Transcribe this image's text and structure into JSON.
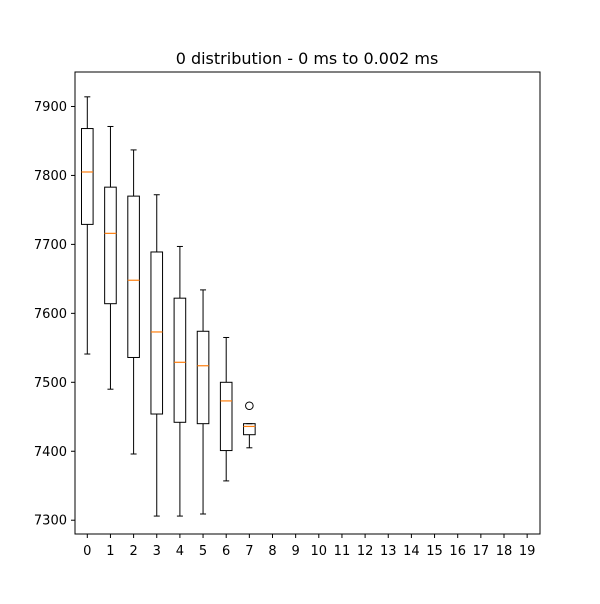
{
  "chart_data": {
    "type": "box",
    "title": "0 distribution - 0 ms to 0.002 ms",
    "xlabel": "",
    "ylabel": "",
    "ylim": [
      7280,
      7950
    ],
    "yticks": [
      7300,
      7400,
      7500,
      7600,
      7700,
      7800,
      7900
    ],
    "categories": [
      "0",
      "1",
      "2",
      "3",
      "4",
      "5",
      "6",
      "7",
      "8",
      "9",
      "10",
      "11",
      "12",
      "13",
      "14",
      "15",
      "16",
      "17",
      "18",
      "19"
    ],
    "grid": false,
    "colors": {
      "box": "#000000",
      "median": "#ff7f0e",
      "background": "#ffffff"
    },
    "boxes": [
      {
        "x": "0",
        "whislo": 7541,
        "q1": 7729,
        "med": 7805,
        "q3": 7868,
        "whishi": 7914,
        "fliers": []
      },
      {
        "x": "1",
        "whislo": 7490,
        "q1": 7614,
        "med": 7716,
        "q3": 7783,
        "whishi": 7871,
        "fliers": []
      },
      {
        "x": "2",
        "whislo": 7396,
        "q1": 7536,
        "med": 7648,
        "q3": 7770,
        "whishi": 7837,
        "fliers": []
      },
      {
        "x": "3",
        "whislo": 7306,
        "q1": 7454,
        "med": 7573,
        "q3": 7689,
        "whishi": 7772,
        "fliers": []
      },
      {
        "x": "4",
        "whislo": 7306,
        "q1": 7442,
        "med": 7529,
        "q3": 7622,
        "whishi": 7697,
        "fliers": []
      },
      {
        "x": "5",
        "whislo": 7309,
        "q1": 7440,
        "med": 7524,
        "q3": 7574,
        "whishi": 7634,
        "fliers": []
      },
      {
        "x": "6",
        "whislo": 7357,
        "q1": 7401,
        "med": 7473,
        "q3": 7500,
        "whishi": 7565,
        "fliers": []
      },
      {
        "x": "7",
        "whislo": 7405,
        "q1": 7424,
        "med": 7436,
        "q3": 7440,
        "whishi": 7440,
        "fliers": [
          7466
        ]
      }
    ]
  }
}
